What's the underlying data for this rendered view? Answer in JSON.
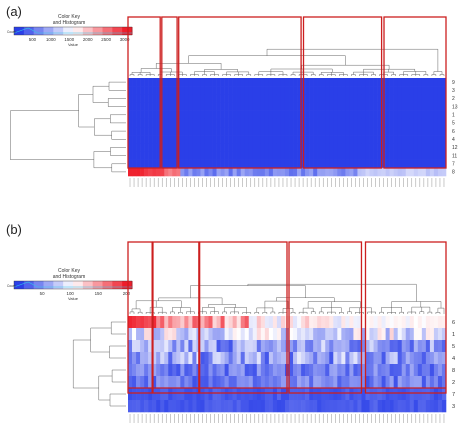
{
  "panels": [
    {
      "label": "(a)"
    },
    {
      "label": "(b)"
    }
  ],
  "chart_data": [
    {
      "type": "heatmap",
      "panel": "(a)",
      "color_key": {
        "title": "Color Key",
        "subtitle": "and Histogram",
        "xlabel": "Value",
        "ylabel": "Count",
        "ticks": [
          500,
          1000,
          1500,
          2000,
          2500,
          3000
        ],
        "range": [
          0,
          3200
        ],
        "low_color": "#2233ee",
        "mid_color": "#ffffff",
        "high_color": "#ee1122"
      },
      "row_labels": [
        "9",
        "3",
        "2",
        "13",
        "1",
        "5",
        "6",
        "4",
        "12",
        "11",
        "7",
        "8"
      ],
      "column_count": 79,
      "column_clusters_boxed": 5,
      "description_of_values": {
        "rows_1_to_11": "uniform low",
        "row_12": "high in first columns, low-mid elsewhere"
      }
    },
    {
      "type": "heatmap",
      "panel": "(b)",
      "color_key": {
        "title": "Color Key",
        "subtitle": "and Histogram",
        "xlabel": "Value",
        "ylabel": "Count",
        "ticks": [
          50,
          100,
          150,
          200
        ],
        "range": [
          0,
          210
        ],
        "low_color": "#2233ee",
        "mid_color": "#ffffff",
        "high_color": "#ee1122"
      },
      "row_labels": [
        "6",
        "1",
        "5",
        "4",
        "8",
        "2",
        "7",
        "3"
      ],
      "column_count": 79,
      "column_clusters_boxed": 5
    }
  ],
  "colors": {
    "box_red": "#cc1f1f",
    "low": "#2a3fe8",
    "high": "#ef1d2a"
  }
}
